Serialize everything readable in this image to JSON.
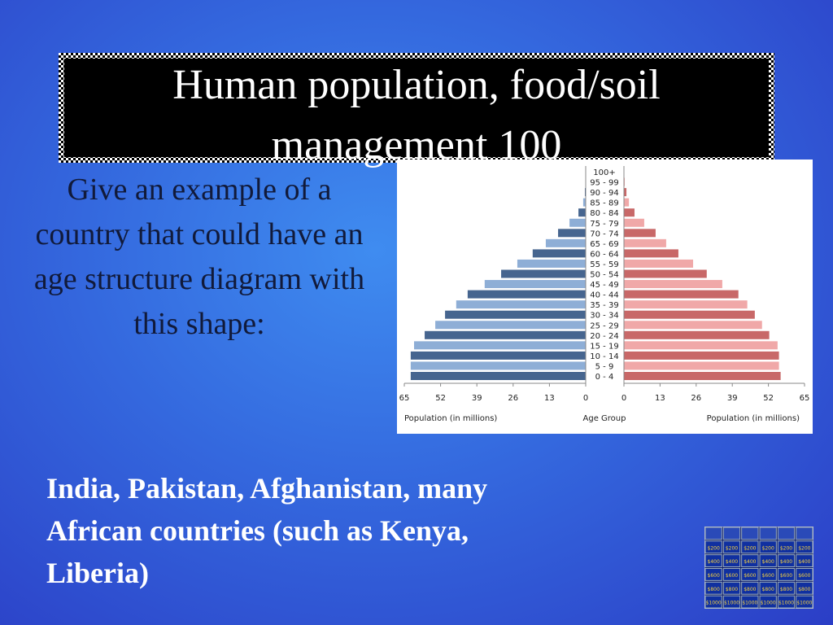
{
  "slide": {
    "title": "Human population, food/soil management 100",
    "question": "Give an example of a country that could have an age structure diagram with this shape:",
    "answer": "India, Pakistan, Afghanistan, many African countries (such as Kenya, Liberia)",
    "board_values": [
      "$200",
      "$400",
      "$600",
      "$800",
      "$1000"
    ]
  },
  "chart_data": {
    "type": "pyramid",
    "categories": [
      "0 - 4",
      "5 - 9",
      "10 - 14",
      "15 - 19",
      "20 - 24",
      "25 - 29",
      "30 - 34",
      "35 - 39",
      "40 - 44",
      "45 - 49",
      "50 - 54",
      "55 - 59",
      "60 - 64",
      "65 - 69",
      "70 - 74",
      "75 - 79",
      "80 - 84",
      "85 - 89",
      "90 - 94",
      "95 - 99",
      "100+"
    ],
    "series": [
      {
        "side": "left",
        "colors": [
          "#46658f",
          "#8eaed6"
        ],
        "values": [
          62.7,
          62.7,
          62.7,
          61.5,
          57.7,
          53.9,
          50.4,
          46.4,
          42.3,
          36.2,
          30.3,
          24.5,
          19.0,
          14.3,
          9.9,
          5.8,
          2.6,
          0.9,
          0.3,
          0.1,
          0
        ]
      },
      {
        "side": "right",
        "colors": [
          "#c86868",
          "#f0a8a8"
        ],
        "values": [
          56.4,
          55.8,
          55.8,
          55.3,
          52.3,
          49.7,
          47.1,
          44.4,
          41.2,
          35.4,
          29.8,
          24.9,
          19.6,
          15.2,
          11.4,
          7.3,
          3.8,
          1.8,
          0.9,
          0.3,
          0
        ]
      }
    ],
    "xlim": [
      0,
      65
    ],
    "xticks": [
      0,
      13,
      26,
      39,
      52,
      65
    ],
    "xlabel": "Population (in millions)",
    "center_label": "Age Group"
  }
}
